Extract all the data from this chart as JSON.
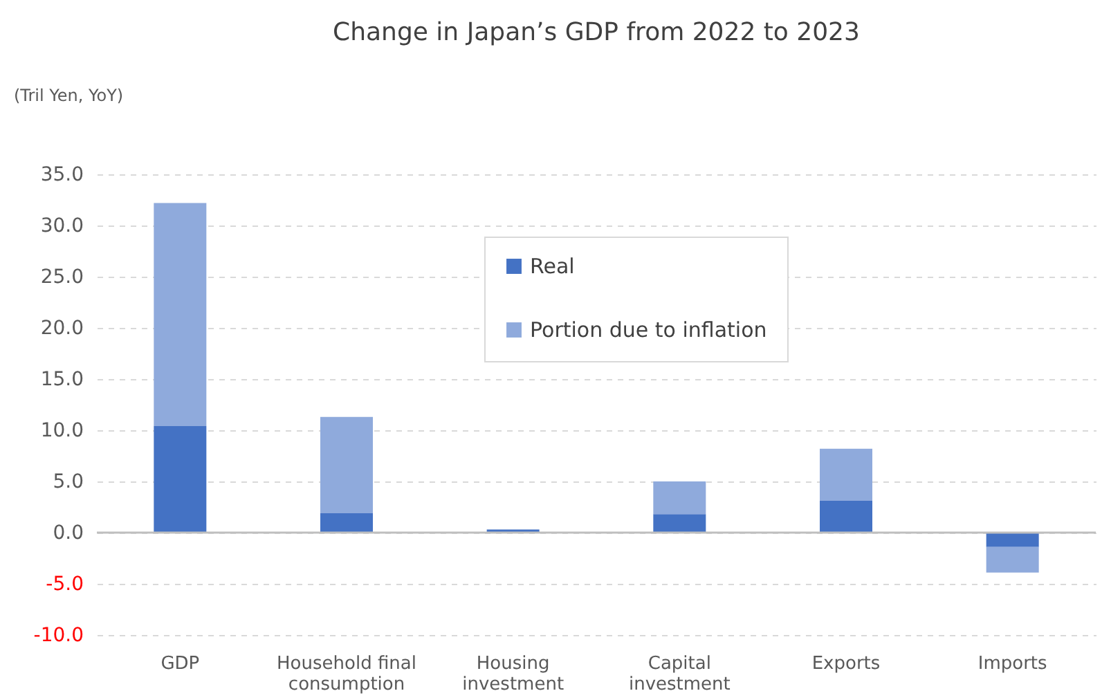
{
  "chart_data": {
    "type": "bar",
    "title": "Change in Japan’s GDP  from 2022 to 2023",
    "annotations": [
      "(Tril Yen, YoY)"
    ],
    "categories": [
      "GDP",
      "Household final consumption",
      "Housing investment",
      "Capital investment",
      "Exports",
      "Imports"
    ],
    "stacked": true,
    "series": [
      {
        "name": "Real",
        "color": "#4472c4",
        "values": [
          10.4,
          1.9,
          0.3,
          1.8,
          3.1,
          -1.4
        ]
      },
      {
        "name": "Portion due to inflation",
        "color": "#8faadc",
        "values": [
          21.8,
          9.4,
          0,
          3.2,
          5.1,
          -2.5
        ]
      }
    ],
    "ylim": [
      -10,
      35
    ],
    "yticks": [
      {
        "value": -10,
        "label": "-10.0"
      },
      {
        "value": -5,
        "label": "-5.0"
      },
      {
        "value": 0,
        "label": "0.0"
      },
      {
        "value": 5,
        "label": "5.0"
      },
      {
        "value": 10,
        "label": "10.0"
      },
      {
        "value": 15,
        "label": "15.0"
      },
      {
        "value": 20,
        "label": "20.0"
      },
      {
        "value": 25,
        "label": "25.0"
      },
      {
        "value": 30,
        "label": "30.0"
      },
      {
        "value": 35,
        "label": "35.0"
      }
    ],
    "grid": "y",
    "legend": "top"
  }
}
